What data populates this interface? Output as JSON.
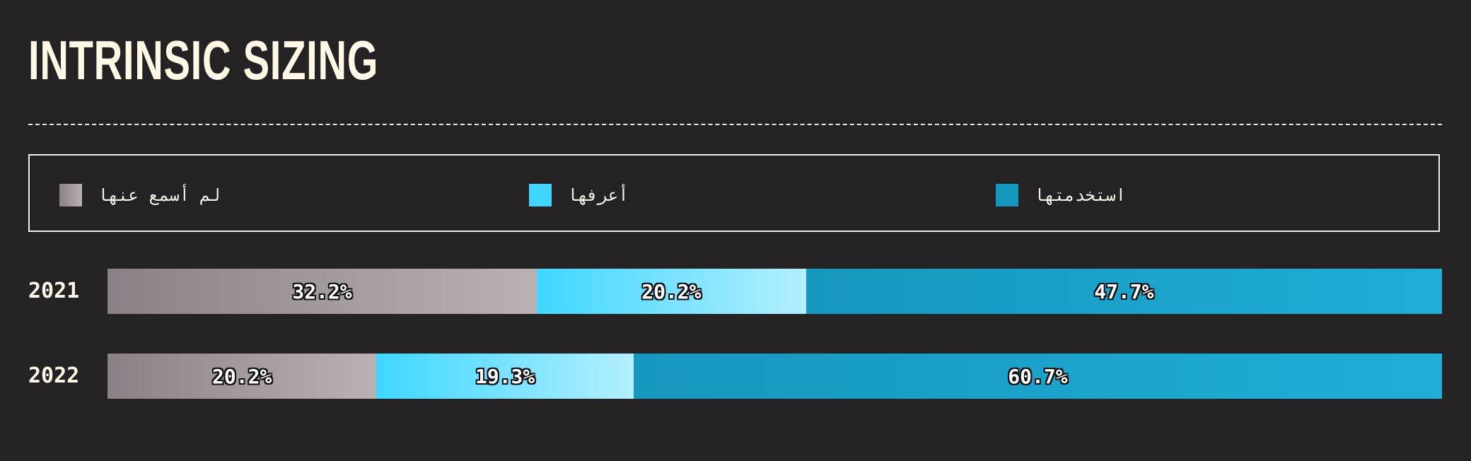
{
  "title": "INTRINSIC SIZING",
  "legend": [
    {
      "label": "لم أسمع عنها",
      "color": "#8f868c"
    },
    {
      "label": "أعرفها",
      "color": "#40d6fd"
    },
    {
      "label": "استخدمتها",
      "color": "#1497bf"
    }
  ],
  "chart_data": {
    "type": "bar",
    "orientation": "horizontal",
    "stacked": true,
    "normalized": true,
    "categories": [
      "2021",
      "2022"
    ],
    "series": [
      {
        "name": "لم أسمع عنها",
        "values": [
          32.2,
          20.2
        ]
      },
      {
        "name": "أعرفها",
        "values": [
          20.2,
          19.3
        ]
      },
      {
        "name": "استخدمتها",
        "values": [
          47.7,
          60.7
        ]
      }
    ],
    "value_labels": [
      [
        "32.2%",
        "20.2%",
        "47.7%"
      ],
      [
        "20.2%",
        "19.3%",
        "60.7%"
      ]
    ],
    "legend_position": "top",
    "grid": false
  }
}
